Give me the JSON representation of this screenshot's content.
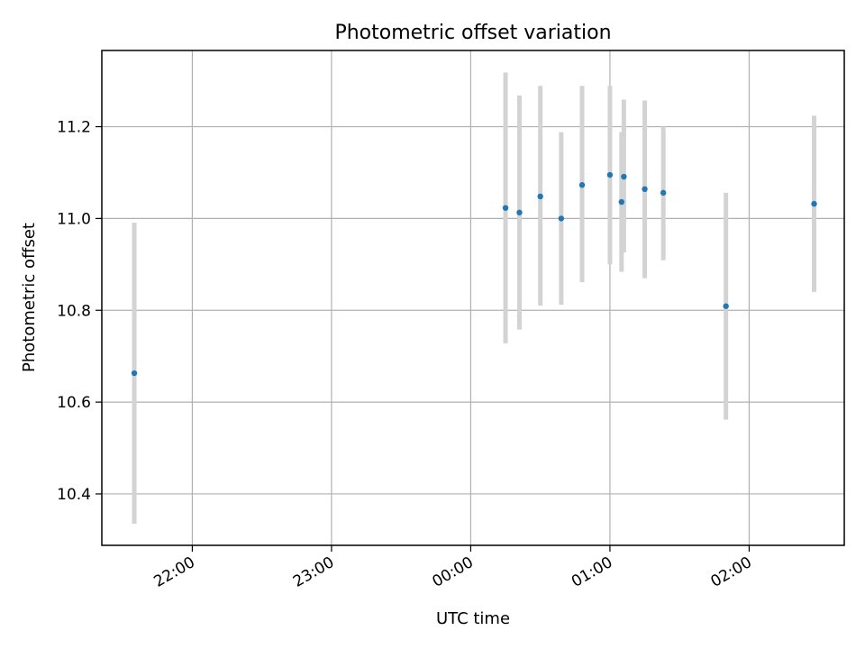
{
  "chart_data": {
    "type": "scatter",
    "title": "Photometric offset variation",
    "xlabel": "UTC time",
    "ylabel": "Photometric offset",
    "x_axis_type": "time",
    "xlim": [
      "21:21",
      "02:41"
    ],
    "ylim": [
      10.288,
      11.366
    ],
    "x_ticks": [
      "22:00",
      "23:00",
      "00:00",
      "01:00",
      "02:00"
    ],
    "y_ticks": [
      "10.4",
      "10.6",
      "10.8",
      "11.0",
      "11.2"
    ],
    "grid": true,
    "marker_color": "#1f77b4",
    "errorbar_color": "#d3d3d3",
    "points": [
      {
        "x": "21:35",
        "y": 10.663,
        "ylo": 10.335,
        "yhi": 10.991
      },
      {
        "x": "00:15",
        "y": 11.023,
        "ylo": 10.728,
        "yhi": 11.318
      },
      {
        "x": "00:21",
        "y": 11.013,
        "ylo": 10.758,
        "yhi": 11.268
      },
      {
        "x": "00:30",
        "y": 11.048,
        "ylo": 10.81,
        "yhi": 11.289
      },
      {
        "x": "00:39",
        "y": 11.0,
        "ylo": 10.812,
        "yhi": 11.188
      },
      {
        "x": "00:48",
        "y": 11.073,
        "ylo": 10.861,
        "yhi": 11.289
      },
      {
        "x": "01:00",
        "y": 11.095,
        "ylo": 10.9,
        "yhi": 11.289
      },
      {
        "x": "01:05",
        "y": 11.036,
        "ylo": 10.884,
        "yhi": 11.188
      },
      {
        "x": "01:06",
        "y": 11.091,
        "ylo": 10.926,
        "yhi": 11.259
      },
      {
        "x": "01:15",
        "y": 11.064,
        "ylo": 10.87,
        "yhi": 11.257
      },
      {
        "x": "01:23",
        "y": 11.056,
        "ylo": 10.909,
        "yhi": 11.2
      },
      {
        "x": "01:50",
        "y": 10.809,
        "ylo": 10.562,
        "yhi": 11.056
      },
      {
        "x": "02:28",
        "y": 11.032,
        "ylo": 10.84,
        "yhi": 11.224
      }
    ]
  }
}
